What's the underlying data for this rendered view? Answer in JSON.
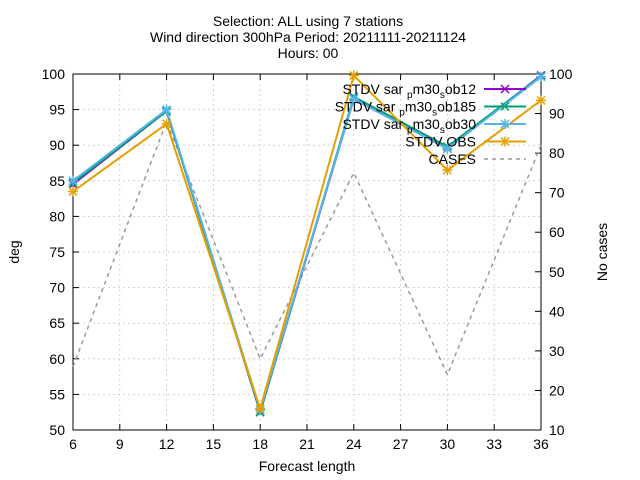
{
  "chart_data": {
    "type": "line",
    "title_lines": [
      "Selection: ALL using      7 stations",
      "Wind direction 300hPa   Period: 20211111-20211124",
      "Hours: 00"
    ],
    "xlabel": "Forecast length",
    "ylabel": "deg",
    "y2label": "No cases",
    "x": [
      6,
      12,
      18,
      24,
      30,
      36
    ],
    "xticks": [
      6,
      9,
      12,
      15,
      18,
      21,
      24,
      27,
      30,
      33,
      36
    ],
    "xlim": [
      6,
      36
    ],
    "ylim": [
      50,
      100
    ],
    "yticks": [
      50,
      55,
      60,
      65,
      70,
      75,
      80,
      85,
      90,
      95,
      100
    ],
    "y2lim": [
      10,
      100
    ],
    "y2ticks": [
      10,
      20,
      30,
      40,
      50,
      60,
      70,
      80,
      90,
      100
    ],
    "grid": true,
    "legend_position": "top-right",
    "series": [
      {
        "name": "STDV sar_p_m30_s_ob12",
        "legend_parts": [
          "STDV sar",
          "p",
          "m30",
          "s",
          "ob12"
        ],
        "color": "#9400d3",
        "marker": "x",
        "axis": "y",
        "values": [
          84.5,
          94.8,
          52.5,
          96.5,
          89.5,
          99.8
        ]
      },
      {
        "name": "STDV sar_p_m30_s_ob185",
        "legend_parts": [
          "STDV sar",
          "p",
          "m30",
          "s",
          "ob185"
        ],
        "color": "#009e73",
        "marker": "x",
        "axis": "y",
        "values": [
          84.7,
          94.8,
          52.5,
          96.8,
          89.8,
          99.7
        ]
      },
      {
        "name": "STDV sar_p_m30_s_ob30",
        "legend_parts": [
          "STDV sar",
          "p",
          "m30",
          "s",
          "ob30"
        ],
        "color": "#56b4e9",
        "marker": "asterisk",
        "axis": "y",
        "values": [
          85.0,
          95.0,
          52.8,
          96.5,
          89.5,
          99.6
        ]
      },
      {
        "name": "STDV OBS",
        "legend_parts": [
          "STDV OBS"
        ],
        "color": "#e69f00",
        "marker": "asterisk",
        "axis": "y",
        "values": [
          83.5,
          93.0,
          53.0,
          99.8,
          86.5,
          96.3
        ]
      },
      {
        "name": "CASES",
        "legend_parts": [
          "CASES"
        ],
        "color": "#999999",
        "marker": "none",
        "dashed": true,
        "axis": "y2",
        "values": [
          26,
          88,
          28,
          75,
          24,
          82
        ]
      }
    ]
  }
}
